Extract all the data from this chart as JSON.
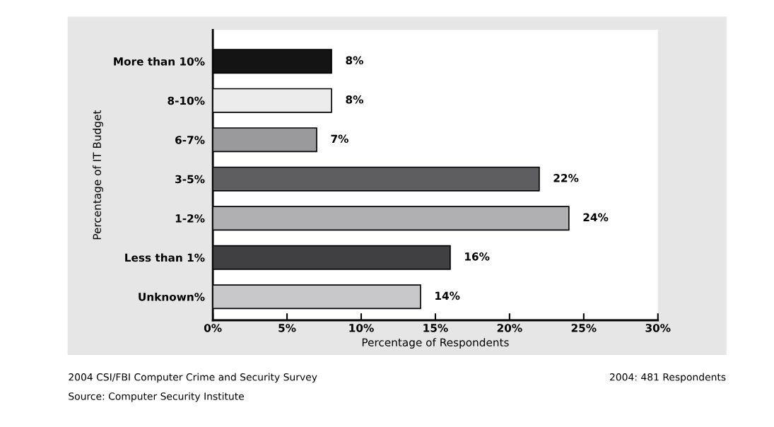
{
  "chart_data": {
    "type": "bar",
    "orientation": "horizontal",
    "categories": [
      "More than 10%",
      "8-10%",
      "6-7%",
      "3-5%",
      "1-2%",
      "Less than 1%",
      "Unknown%"
    ],
    "values": [
      8,
      8,
      7,
      22,
      24,
      16,
      14
    ],
    "colors": [
      "#141414",
      "#ececec",
      "#9a9a9c",
      "#5e5e60",
      "#b0b0b2",
      "#404042",
      "#c8c8ca"
    ],
    "value_labels": [
      "8%",
      "8%",
      "7%",
      "22%",
      "24%",
      "16%",
      "14%"
    ],
    "xlabel": "Percentage of Respondents",
    "ylabel": "Percentage of IT Budget",
    "xlim": [
      0,
      30
    ],
    "xticks": [
      {
        "value": 0,
        "label": "0%"
      },
      {
        "value": 5,
        "label": "5%"
      },
      {
        "value": 10,
        "label": "10%"
      },
      {
        "value": 15,
        "label": "15%"
      },
      {
        "value": 20,
        "label": "20%"
      },
      {
        "value": 25,
        "label": "25%"
      },
      {
        "value": 30,
        "label": "30%"
      }
    ],
    "grid": false,
    "annotations": [
      "2004 CSI/FBI Computer Crime and Security Survey",
      "Source: Computer Security Institute",
      "2004: 481 Respondents"
    ]
  }
}
